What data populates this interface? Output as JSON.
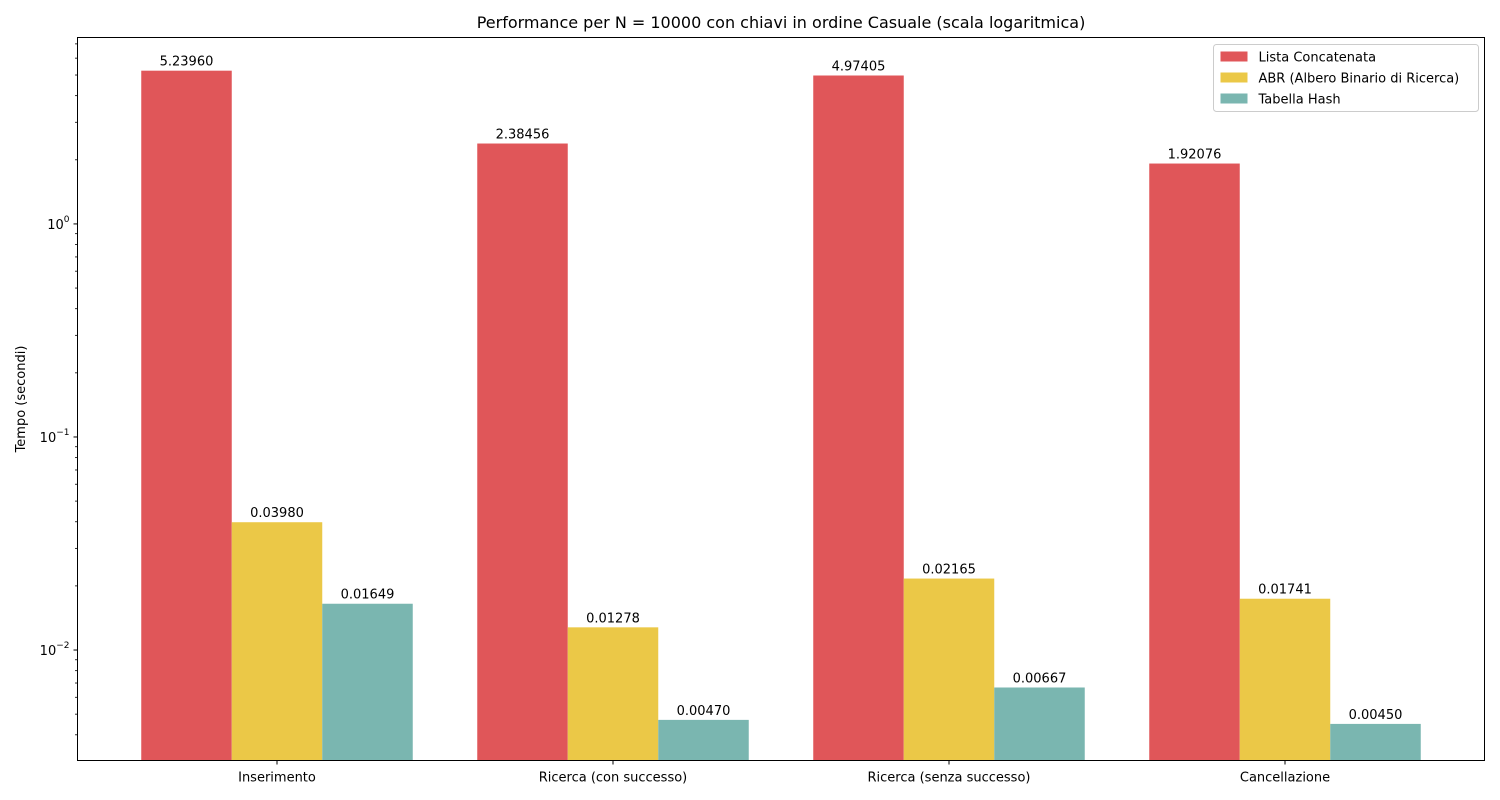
{
  "chart_data": {
    "type": "bar",
    "title": "Performance per N = 10000 con chiavi in ordine Casuale (scala logaritmica)",
    "xlabel": "",
    "ylabel": "Tempo (secondi)",
    "yscale": "log",
    "ylim": [
      0.00303,
      7.5
    ],
    "yticks": [
      {
        "value": 1,
        "base": "10",
        "exp": "0"
      },
      {
        "value": 0.1,
        "base": "10",
        "exp": "−1"
      },
      {
        "value": 0.01,
        "base": "10",
        "exp": "−2"
      }
    ],
    "categories": [
      "Inserimento",
      "Ricerca (con successo)",
      "Ricerca (senza successo)",
      "Cancellazione"
    ],
    "series": [
      {
        "name": "Lista Concatenata",
        "color": "#e05659",
        "values": [
          5.2396,
          2.38456,
          4.97405,
          1.92076
        ],
        "labels": [
          "5.23960",
          "2.38456",
          "4.97405",
          "1.92076"
        ]
      },
      {
        "name": "ABR (Albero Binario di Ricerca)",
        "color": "#ebc847",
        "values": [
          0.0398,
          0.01278,
          0.02165,
          0.01741
        ],
        "labels": [
          "0.03980",
          "0.01278",
          "0.02165",
          "0.01741"
        ]
      },
      {
        "name": "Tabella Hash",
        "color": "#7ab6b0",
        "values": [
          0.01649,
          0.0047,
          0.00667,
          0.0045
        ],
        "labels": [
          "0.01649",
          "0.00470",
          "0.00667",
          "0.00450"
        ]
      }
    ],
    "grid": false,
    "legend": "top-right"
  }
}
